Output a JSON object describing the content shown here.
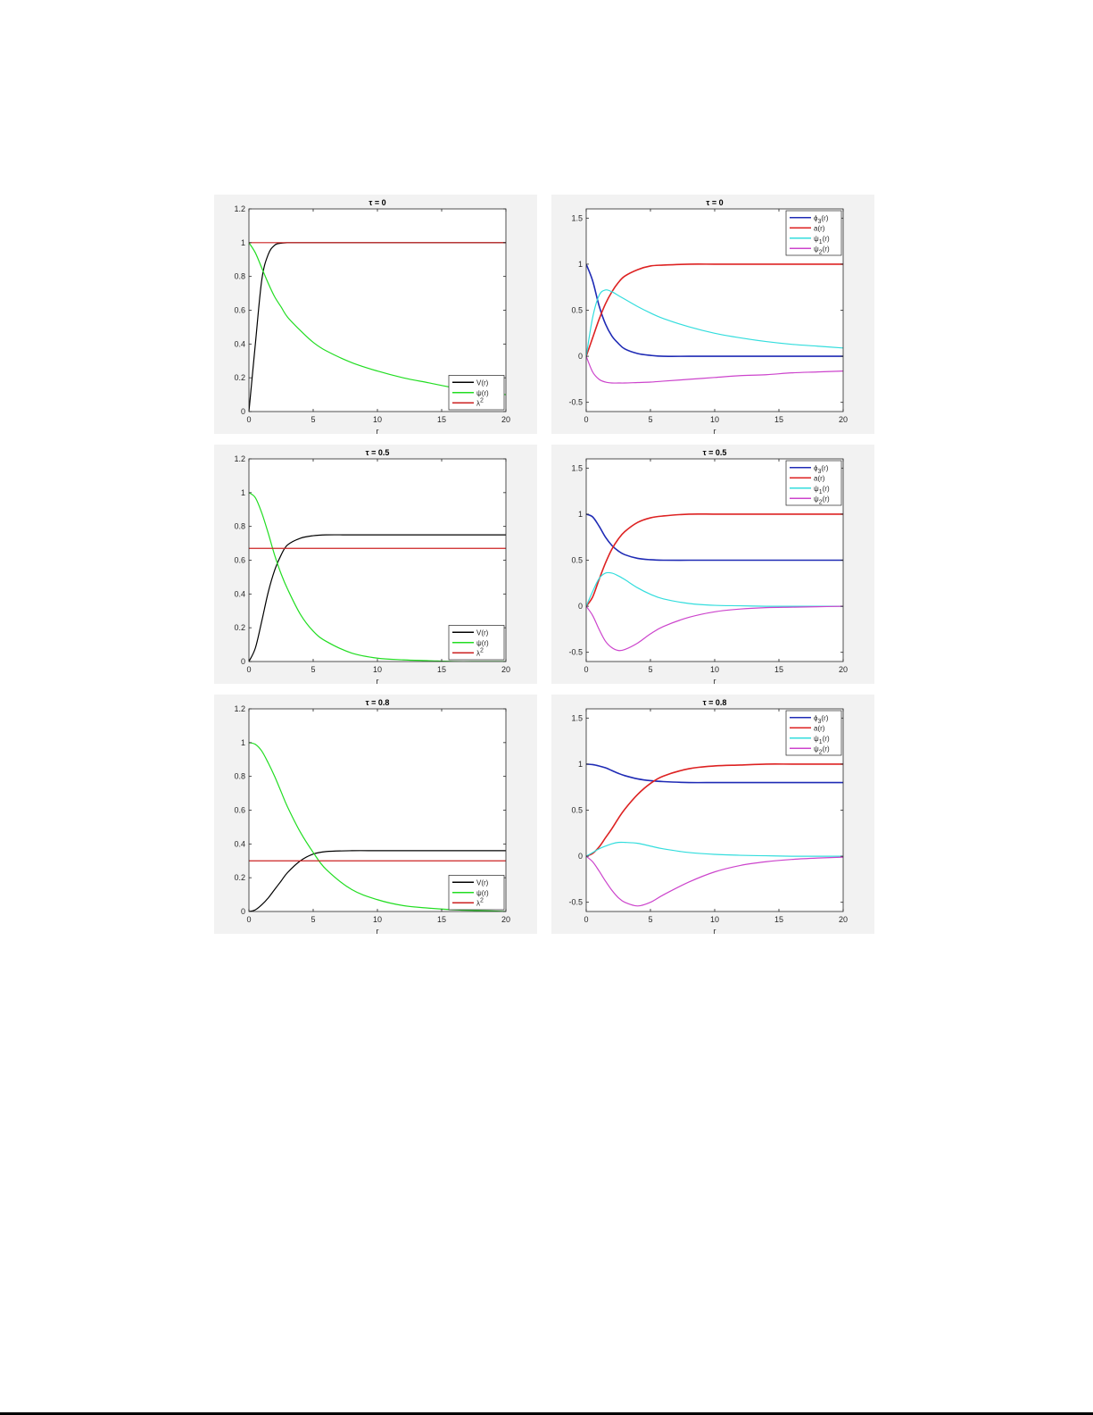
{
  "chart_data": [
    {
      "type": "line",
      "title": "τ = 0",
      "xlabel": "r",
      "ylabel": "",
      "xlim": [
        0,
        20
      ],
      "ylim": [
        0,
        1.2
      ],
      "xticks": [
        0,
        5,
        10,
        15,
        20
      ],
      "yticks": [
        0,
        0.2,
        0.4,
        0.6,
        0.8,
        1,
        1.2
      ],
      "grid": false,
      "legend_position": "bottom-right",
      "x": [
        0,
        0.5,
        1,
        1.5,
        2,
        2.5,
        3,
        4,
        5,
        6,
        8,
        10,
        12,
        14,
        16,
        18,
        20
      ],
      "series": [
        {
          "name": "V(r)",
          "color": "#000000",
          "values": [
            0,
            0.4,
            0.78,
            0.93,
            0.985,
            0.997,
            1,
            1,
            1,
            1,
            1,
            1,
            1,
            1,
            1,
            1,
            1
          ]
        },
        {
          "name": "ψ(r)",
          "color": "#22dd22",
          "values": [
            1,
            0.94,
            0.85,
            0.76,
            0.68,
            0.62,
            0.56,
            0.48,
            0.41,
            0.36,
            0.29,
            0.24,
            0.2,
            0.17,
            0.14,
            0.12,
            0.1
          ]
        },
        {
          "name": "λ2",
          "color": "#cc2222",
          "values": [
            1,
            1,
            1,
            1,
            1,
            1,
            1,
            1,
            1,
            1,
            1,
            1,
            1,
            1,
            1,
            1,
            1
          ]
        }
      ]
    },
    {
      "type": "line",
      "title": "τ = 0",
      "xlabel": "r",
      "ylabel": "",
      "xlim": [
        0,
        20
      ],
      "ylim": [
        -0.6,
        1.6
      ],
      "xticks": [
        0,
        5,
        10,
        15,
        20
      ],
      "yticks": [
        -0.5,
        0,
        0.5,
        1,
        1.5
      ],
      "grid": false,
      "legend_position": "top-right",
      "x": [
        0,
        0.5,
        1,
        1.5,
        2,
        2.5,
        3,
        4,
        5,
        6,
        8,
        10,
        12,
        14,
        16,
        18,
        20
      ],
      "series": [
        {
          "name": "ϕ3(r)",
          "color": "#1f2bb5",
          "values": [
            1,
            0.82,
            0.55,
            0.35,
            0.22,
            0.14,
            0.08,
            0.03,
            0.01,
            0,
            0,
            0,
            0,
            0,
            0,
            0,
            0
          ]
        },
        {
          "name": "a(r)",
          "color": "#dd2222",
          "values": [
            0,
            0.2,
            0.4,
            0.57,
            0.7,
            0.8,
            0.87,
            0.94,
            0.98,
            0.99,
            1,
            1,
            1,
            1,
            1,
            1,
            1
          ]
        },
        {
          "name": "ψ1(r)",
          "color": "#33dddd",
          "values": [
            0,
            0.42,
            0.66,
            0.72,
            0.7,
            0.66,
            0.62,
            0.54,
            0.47,
            0.41,
            0.32,
            0.25,
            0.2,
            0.16,
            0.13,
            0.11,
            0.09
          ]
        },
        {
          "name": "ψ2(r)",
          "color": "#cc44cc",
          "values": [
            0,
            -0.17,
            -0.25,
            -0.28,
            -0.29,
            -0.29,
            -0.29,
            -0.285,
            -0.28,
            -0.27,
            -0.25,
            -0.23,
            -0.21,
            -0.2,
            -0.18,
            -0.17,
            -0.16
          ]
        }
      ]
    },
    {
      "type": "line",
      "title": "τ = 0.5",
      "xlabel": "r",
      "ylabel": "",
      "xlim": [
        0,
        20
      ],
      "ylim": [
        0,
        1.2
      ],
      "xticks": [
        0,
        5,
        10,
        15,
        20
      ],
      "yticks": [
        0,
        0.2,
        0.4,
        0.6,
        0.8,
        1,
        1.2
      ],
      "grid": false,
      "legend_position": "bottom-right",
      "x": [
        0,
        0.5,
        1,
        1.5,
        2,
        2.5,
        3,
        4,
        5,
        6,
        8,
        10,
        12,
        14,
        16,
        18,
        20
      ],
      "series": [
        {
          "name": "V(r)",
          "color": "#000000",
          "values": [
            0,
            0.08,
            0.24,
            0.41,
            0.54,
            0.63,
            0.69,
            0.73,
            0.745,
            0.75,
            0.75,
            0.75,
            0.75,
            0.75,
            0.75,
            0.75,
            0.75
          ]
        },
        {
          "name": "ψ(r)",
          "color": "#22dd22",
          "values": [
            1,
            0.97,
            0.88,
            0.76,
            0.63,
            0.52,
            0.43,
            0.28,
            0.18,
            0.12,
            0.05,
            0.02,
            0.01,
            0.005,
            0,
            0,
            0
          ]
        },
        {
          "name": "λ2",
          "color": "#cc2222",
          "values": [
            0.67,
            0.67,
            0.67,
            0.67,
            0.67,
            0.67,
            0.67,
            0.67,
            0.67,
            0.67,
            0.67,
            0.67,
            0.67,
            0.67,
            0.67,
            0.67,
            0.67
          ]
        }
      ]
    },
    {
      "type": "line",
      "title": "τ = 0.5",
      "xlabel": "r",
      "ylabel": "",
      "xlim": [
        0,
        20
      ],
      "ylim": [
        -0.6,
        1.6
      ],
      "xticks": [
        0,
        5,
        10,
        15,
        20
      ],
      "yticks": [
        -0.5,
        0,
        0.5,
        1,
        1.5
      ],
      "grid": false,
      "legend_position": "top-right",
      "x": [
        0,
        0.5,
        1,
        1.5,
        2,
        2.5,
        3,
        4,
        5,
        6,
        8,
        10,
        12,
        14,
        16,
        18,
        20
      ],
      "series": [
        {
          "name": "ϕ3(r)",
          "color": "#1f2bb5",
          "values": [
            1,
            0.97,
            0.87,
            0.75,
            0.66,
            0.6,
            0.56,
            0.52,
            0.505,
            0.5,
            0.5,
            0.5,
            0.5,
            0.5,
            0.5,
            0.5,
            0.5
          ]
        },
        {
          "name": "a(r)",
          "color": "#dd2222",
          "values": [
            0,
            0.1,
            0.29,
            0.47,
            0.62,
            0.73,
            0.81,
            0.91,
            0.96,
            0.98,
            1,
            1,
            1,
            1,
            1,
            1,
            1
          ]
        },
        {
          "name": "ψ1(r)",
          "color": "#33dddd",
          "values": [
            0,
            0.16,
            0.3,
            0.36,
            0.36,
            0.33,
            0.29,
            0.2,
            0.13,
            0.08,
            0.03,
            0.01,
            0.005,
            0,
            0,
            0,
            0
          ]
        },
        {
          "name": "ψ2(r)",
          "color": "#cc44cc",
          "values": [
            0,
            -0.1,
            -0.25,
            -0.38,
            -0.45,
            -0.48,
            -0.47,
            -0.4,
            -0.3,
            -0.22,
            -0.12,
            -0.06,
            -0.03,
            -0.015,
            -0.01,
            -0.005,
            0
          ]
        }
      ]
    },
    {
      "type": "line",
      "title": "τ = 0.8",
      "xlabel": "r",
      "ylabel": "",
      "xlim": [
        0,
        20
      ],
      "ylim": [
        0,
        1.2
      ],
      "xticks": [
        0,
        5,
        10,
        15,
        20
      ],
      "yticks": [
        0,
        0.2,
        0.4,
        0.6,
        0.8,
        1,
        1.2
      ],
      "grid": false,
      "legend_position": "bottom-right",
      "x": [
        0,
        0.5,
        1,
        1.5,
        2,
        2.5,
        3,
        4,
        5,
        6,
        8,
        10,
        12,
        14,
        16,
        18,
        20
      ],
      "series": [
        {
          "name": "V(r)",
          "color": "#000000",
          "values": [
            0,
            0.01,
            0.04,
            0.08,
            0.13,
            0.18,
            0.23,
            0.3,
            0.34,
            0.355,
            0.36,
            0.36,
            0.36,
            0.36,
            0.36,
            0.36,
            0.36
          ]
        },
        {
          "name": "ψ(r)",
          "color": "#22dd22",
          "values": [
            1,
            0.99,
            0.95,
            0.88,
            0.8,
            0.71,
            0.62,
            0.47,
            0.35,
            0.25,
            0.13,
            0.07,
            0.035,
            0.02,
            0.01,
            0.005,
            0
          ]
        },
        {
          "name": "λ2",
          "color": "#cc2222",
          "values": [
            0.3,
            0.3,
            0.3,
            0.3,
            0.3,
            0.3,
            0.3,
            0.3,
            0.3,
            0.3,
            0.3,
            0.3,
            0.3,
            0.3,
            0.3,
            0.3,
            0.3
          ]
        }
      ]
    },
    {
      "type": "line",
      "title": "τ = 0.8",
      "xlabel": "r",
      "ylabel": "",
      "xlim": [
        0,
        20
      ],
      "ylim": [
        -0.6,
        1.6
      ],
      "xticks": [
        0,
        5,
        10,
        15,
        20
      ],
      "yticks": [
        -0.5,
        0,
        0.5,
        1,
        1.5
      ],
      "grid": false,
      "legend_position": "top-right",
      "x": [
        0,
        0.5,
        1,
        1.5,
        2,
        2.5,
        3,
        4,
        5,
        6,
        8,
        10,
        12,
        14,
        16,
        18,
        20
      ],
      "series": [
        {
          "name": "ϕ3(r)",
          "color": "#1f2bb5",
          "values": [
            1,
            0.995,
            0.98,
            0.96,
            0.93,
            0.9,
            0.875,
            0.84,
            0.82,
            0.81,
            0.8,
            0.8,
            0.8,
            0.8,
            0.8,
            0.8,
            0.8
          ]
        },
        {
          "name": "a(r)",
          "color": "#dd2222",
          "values": [
            0,
            0.03,
            0.1,
            0.2,
            0.3,
            0.41,
            0.51,
            0.67,
            0.79,
            0.87,
            0.95,
            0.98,
            0.99,
            1,
            1,
            1,
            1
          ]
        },
        {
          "name": "ψ1(r)",
          "color": "#33dddd",
          "values": [
            0,
            0.04,
            0.08,
            0.11,
            0.135,
            0.15,
            0.15,
            0.14,
            0.11,
            0.08,
            0.04,
            0.02,
            0.01,
            0.005,
            0,
            0,
            0
          ]
        },
        {
          "name": "ψ2(r)",
          "color": "#cc44cc",
          "values": [
            0,
            -0.06,
            -0.16,
            -0.27,
            -0.37,
            -0.45,
            -0.5,
            -0.54,
            -0.5,
            -0.42,
            -0.28,
            -0.17,
            -0.1,
            -0.06,
            -0.035,
            -0.02,
            -0.01
          ]
        }
      ]
    }
  ]
}
